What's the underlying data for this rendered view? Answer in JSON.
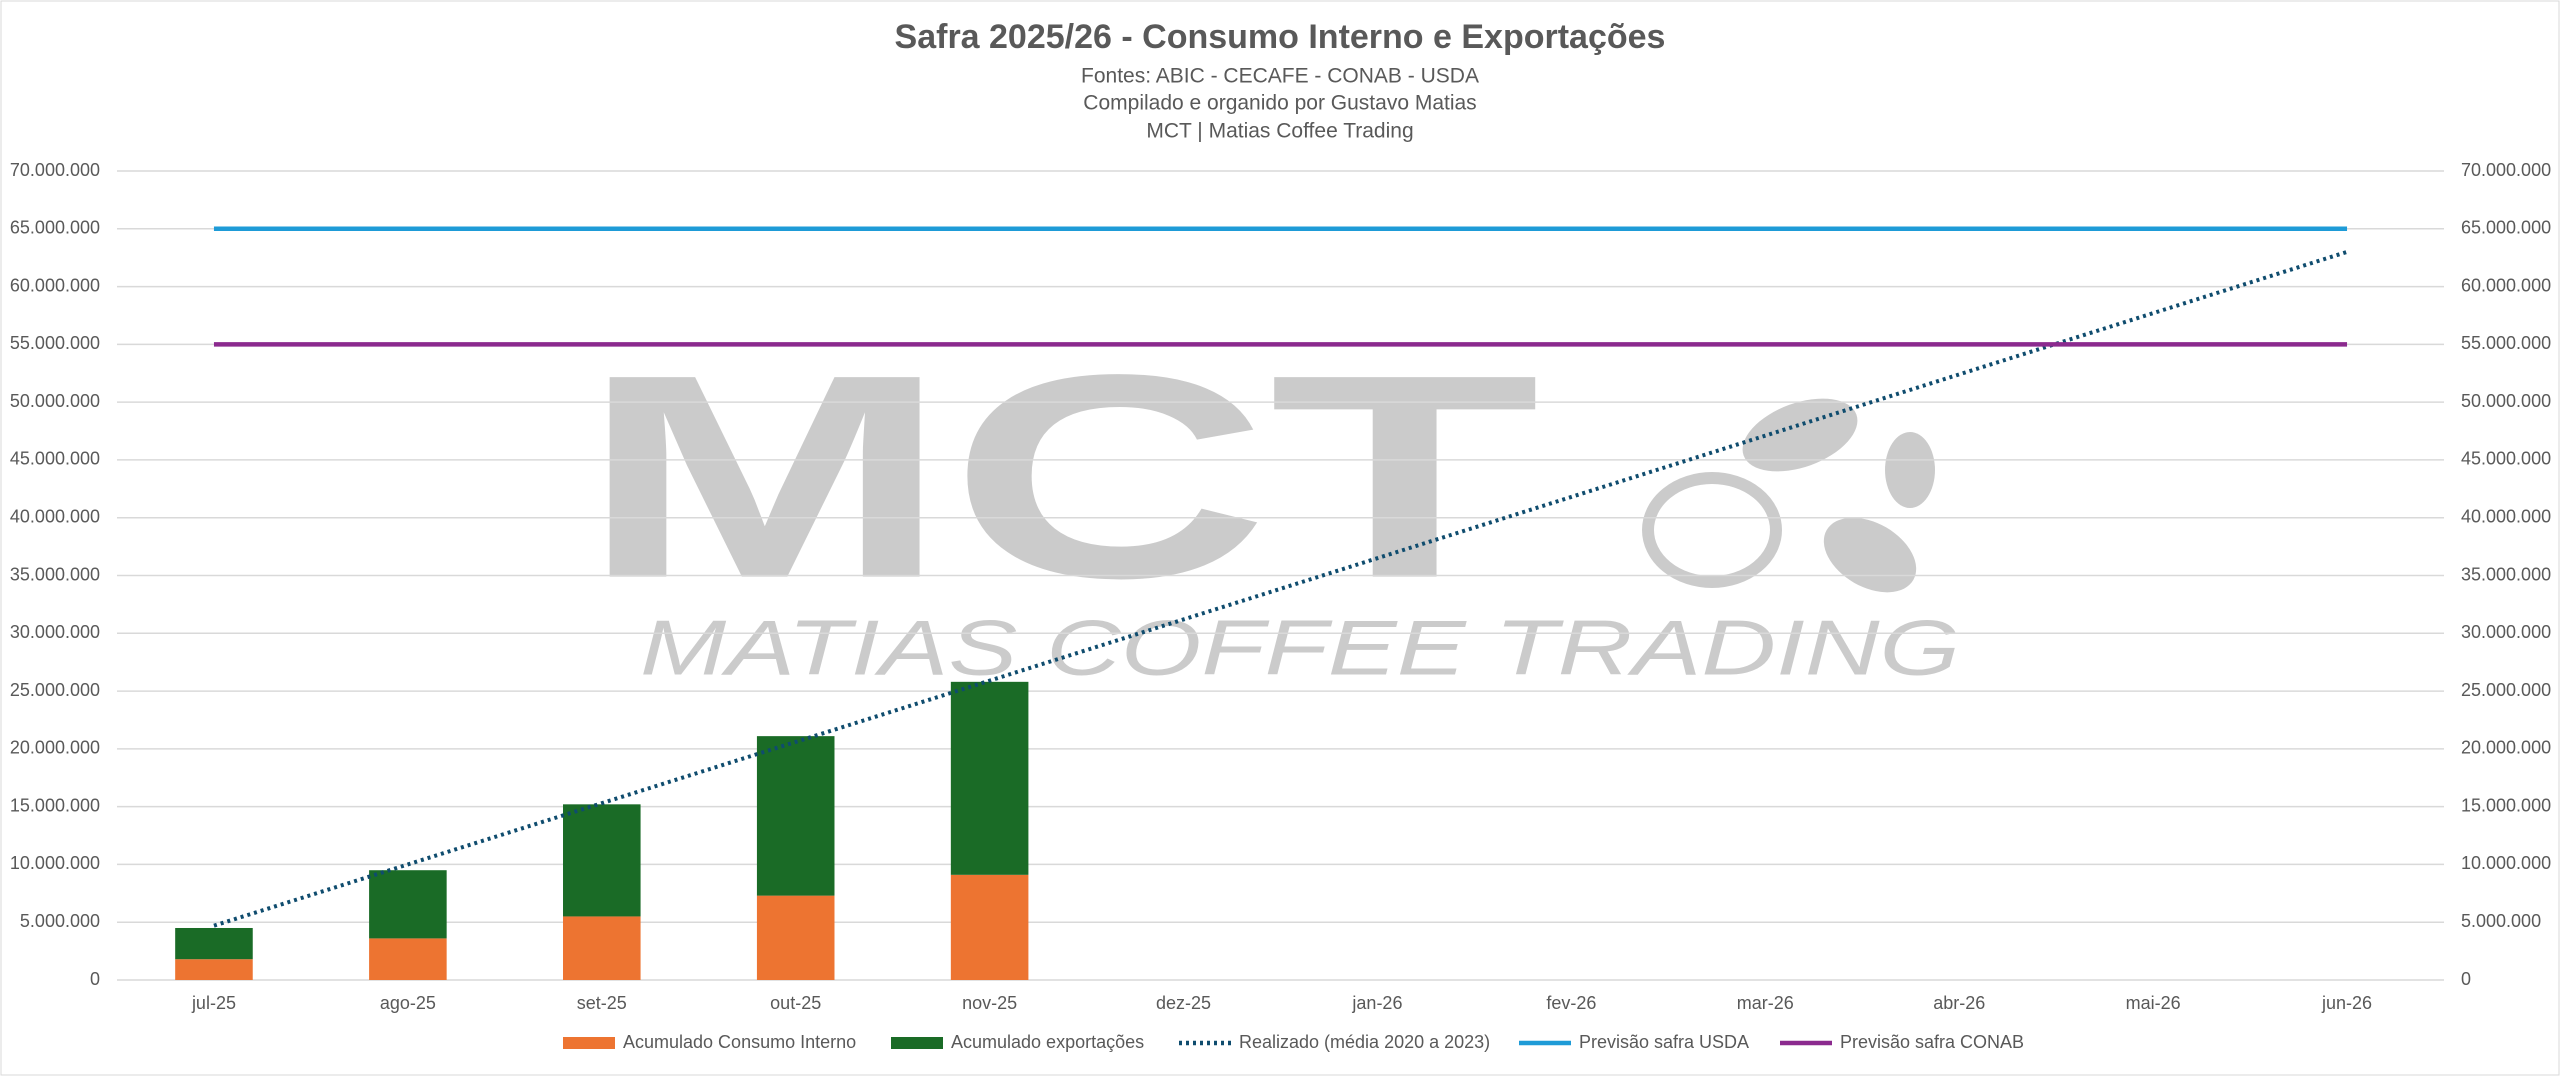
{
  "chart_data": {
    "type": "bar",
    "title": "Safra 2025/26 - Consumo Interno e Exportações",
    "subtitles": [
      "Fontes: ABIC - CECAFE - CONAB - USDA",
      "Compilado e organido por Gustavo Matias",
      "MCT | Matias Coffee Trading"
    ],
    "watermark": {
      "logo": "MCT",
      "text": "MATIAS COFFEE TRADING"
    },
    "categories": [
      "jul-25",
      "ago-25",
      "set-25",
      "out-25",
      "nov-25",
      "dez-25",
      "jan-26",
      "fev-26",
      "mar-26",
      "abr-26",
      "mai-26",
      "jun-26"
    ],
    "series": [
      {
        "name": "Acumulado Consumo Interno",
        "type": "bar",
        "color": "#ED7431",
        "values": [
          1800000,
          3600000,
          5500000,
          7300000,
          9100000,
          null,
          null,
          null,
          null,
          null,
          null,
          null
        ]
      },
      {
        "name": "Acumulado exportações",
        "type": "bar",
        "color": "#1A6B26",
        "values": [
          2700000,
          5900000,
          9700000,
          13800000,
          16700000,
          null,
          null,
          null,
          null,
          null,
          null,
          null
        ]
      },
      {
        "name": "Realizado (média 2020 a 2023)",
        "type": "line",
        "style": "dotted",
        "color": "#0F4C6E",
        "values": [
          4700000,
          10000000,
          15300000,
          20600000,
          25900000,
          31200000,
          36500000,
          41800000,
          47100000,
          52400000,
          57700000,
          63000000
        ]
      },
      {
        "name": "Previsão safra USDA",
        "type": "line",
        "style": "solid",
        "color": "#1E9BD7",
        "values": [
          65000000,
          65000000,
          65000000,
          65000000,
          65000000,
          65000000,
          65000000,
          65000000,
          65000000,
          65000000,
          65000000,
          65000000
        ]
      },
      {
        "name": "Previsão safra CONAB",
        "type": "line",
        "style": "solid",
        "color": "#8B2A8E",
        "values": [
          55000000,
          55000000,
          55000000,
          55000000,
          55000000,
          55000000,
          55000000,
          55000000,
          55000000,
          55000000,
          55000000,
          55000000
        ]
      }
    ],
    "stacked": true,
    "ylim": [
      0,
      70000000
    ],
    "yticks": [
      0,
      {
        "value": 5000000,
        "label": "5.000.000"
      },
      {
        "value": 10000000,
        "label": "10.000.000"
      },
      {
        "value": 15000000,
        "label": "15.000.000"
      },
      {
        "value": 20000000,
        "label": "20.000.000"
      },
      {
        "value": 25000000,
        "label": "25.000.000"
      },
      {
        "value": 30000000,
        "label": "30.000.000"
      },
      {
        "value": 35000000,
        "label": "35.000.000"
      },
      {
        "value": 40000000,
        "label": "40.000.000"
      },
      {
        "value": 45000000,
        "label": "45.000.000"
      },
      {
        "value": 50000000,
        "label": "50.000.000"
      },
      {
        "value": 55000000,
        "label": "55.000.000"
      },
      {
        "value": 60000000,
        "label": "60.000.000"
      },
      {
        "value": 65000000,
        "label": "65.000.000"
      },
      {
        "value": 70000000,
        "label": "70.000.000"
      }
    ],
    "y2lim": [
      0,
      70000000
    ],
    "y2ticks": [
      0,
      {
        "value": 5000000,
        "label": "5.000.000"
      },
      {
        "value": 10000000,
        "label": "10.000.000"
      },
      {
        "value": 15000000,
        "label": "15.000.000"
      },
      {
        "value": 20000000,
        "label": "20.000.000"
      },
      {
        "value": 25000000,
        "label": "25.000.000"
      },
      {
        "value": 30000000,
        "label": "30.000.000"
      },
      {
        "value": 35000000,
        "label": "35.000.000"
      },
      {
        "value": 40000000,
        "label": "40.000.000"
      },
      {
        "value": 45000000,
        "label": "45.000.000"
      },
      {
        "value": 50000000,
        "label": "50.000.000"
      },
      {
        "value": 55000000,
        "label": "55.000.000"
      },
      {
        "value": 60000000,
        "label": "60.000.000"
      },
      {
        "value": 65000000,
        "label": "65.000.000"
      },
      {
        "value": 70000000,
        "label": "70.000.000"
      }
    ],
    "grid": true,
    "legend": "bottom"
  }
}
